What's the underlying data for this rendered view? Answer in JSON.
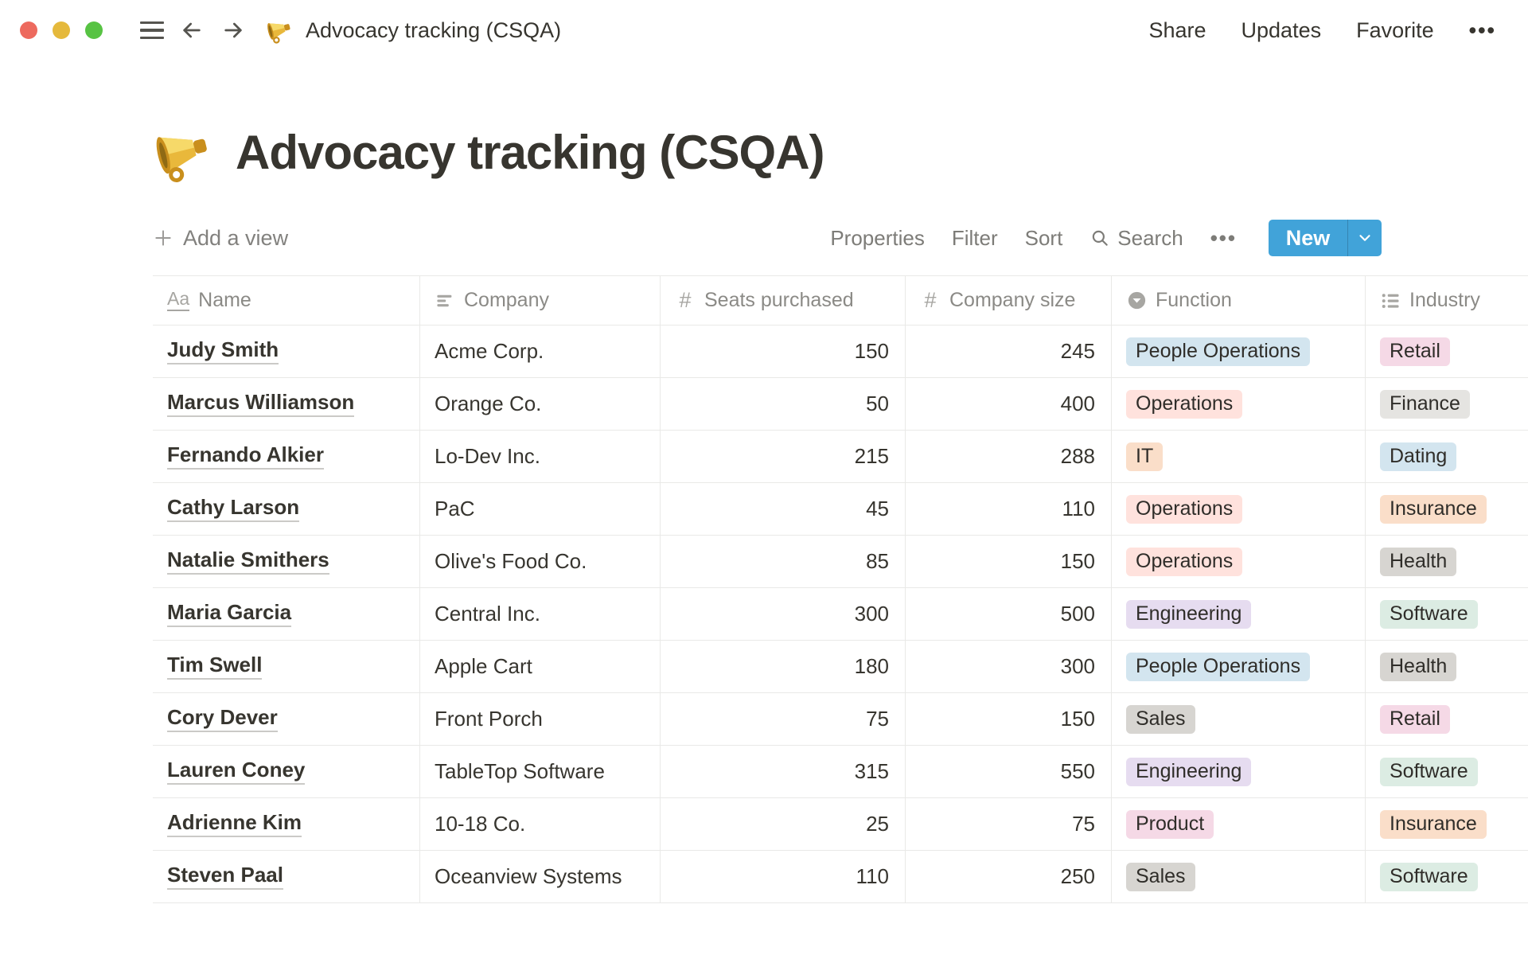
{
  "window": {
    "title": "Advocacy tracking (CSQA)",
    "share_label": "Share",
    "updates_label": "Updates",
    "favorite_label": "Favorite",
    "more_label": "•••"
  },
  "page": {
    "title": "Advocacy tracking (CSQA)",
    "emoji": "megaphone"
  },
  "toolbar": {
    "add_view_label": "Add a view",
    "properties_label": "Properties",
    "filter_label": "Filter",
    "sort_label": "Sort",
    "search_label": "Search",
    "more_label": "•••",
    "new_label": "New",
    "new_button_color": "#41A3D9"
  },
  "tag_colors": {
    "blue": "#D3E5EF",
    "red": "#FFE2DD",
    "orange": "#FADEC9",
    "purple": "#E6DCF0",
    "gray": "#D7D5D1",
    "light_gray": "#E5E4E1",
    "pink": "#F5D9E6",
    "green": "#DCECE3"
  },
  "table": {
    "columns": [
      {
        "id": "name",
        "label": "Name",
        "icon": "title-icon",
        "align": "left"
      },
      {
        "id": "company",
        "label": "Company",
        "icon": "text-icon",
        "align": "left"
      },
      {
        "id": "seats",
        "label": "Seats purchased",
        "icon": "number-icon",
        "align": "right"
      },
      {
        "id": "size",
        "label": "Company size",
        "icon": "number-icon",
        "align": "right"
      },
      {
        "id": "function",
        "label": "Function",
        "icon": "select-icon",
        "align": "left"
      },
      {
        "id": "industry",
        "label": "Industry",
        "icon": "multiselect-icon",
        "align": "left"
      }
    ],
    "rows": [
      {
        "name": "Judy Smith",
        "company": "Acme Corp.",
        "seats": "150",
        "size": "245",
        "function": {
          "label": "People Operations",
          "color": "blue"
        },
        "industry": {
          "label": "Retail",
          "color": "pink"
        }
      },
      {
        "name": "Marcus Williamson",
        "company": "Orange Co.",
        "seats": "50",
        "size": "400",
        "function": {
          "label": "Operations",
          "color": "red"
        },
        "industry": {
          "label": "Finance",
          "color": "light_gray"
        }
      },
      {
        "name": "Fernando Alkier",
        "company": "Lo-Dev Inc.",
        "seats": "215",
        "size": "288",
        "function": {
          "label": "IT",
          "color": "orange"
        },
        "industry": {
          "label": "Dating",
          "color": "blue"
        }
      },
      {
        "name": "Cathy Larson",
        "company": "PaC",
        "seats": "45",
        "size": "110",
        "function": {
          "label": "Operations",
          "color": "red"
        },
        "industry": {
          "label": "Insurance",
          "color": "orange"
        }
      },
      {
        "name": "Natalie Smithers",
        "company": "Olive's Food Co.",
        "seats": "85",
        "size": "150",
        "function": {
          "label": "Operations",
          "color": "red"
        },
        "industry": {
          "label": "Health",
          "color": "gray"
        }
      },
      {
        "name": "Maria Garcia",
        "company": "Central Inc.",
        "seats": "300",
        "size": "500",
        "function": {
          "label": "Engineering",
          "color": "purple"
        },
        "industry": {
          "label": "Software",
          "color": "green"
        }
      },
      {
        "name": "Tim Swell",
        "company": "Apple Cart",
        "seats": "180",
        "size": "300",
        "function": {
          "label": "People Operations",
          "color": "blue"
        },
        "industry": {
          "label": "Health",
          "color": "gray"
        }
      },
      {
        "name": "Cory Dever",
        "company": "Front Porch",
        "seats": "75",
        "size": "150",
        "function": {
          "label": "Sales",
          "color": "gray"
        },
        "industry": {
          "label": "Retail",
          "color": "pink"
        }
      },
      {
        "name": "Lauren Coney",
        "company": "TableTop Software",
        "seats": "315",
        "size": "550",
        "function": {
          "label": "Engineering",
          "color": "purple"
        },
        "industry": {
          "label": "Software",
          "color": "green"
        }
      },
      {
        "name": "Adrienne Kim",
        "company": "10-18 Co.",
        "seats": "25",
        "size": "75",
        "function": {
          "label": "Product",
          "color": "pink"
        },
        "industry": {
          "label": "Insurance",
          "color": "orange"
        }
      },
      {
        "name": "Steven Paal",
        "company": "Oceanview Systems",
        "seats": "110",
        "size": "250",
        "function": {
          "label": "Sales",
          "color": "gray"
        },
        "industry": {
          "label": "Software",
          "color": "green"
        }
      }
    ]
  }
}
